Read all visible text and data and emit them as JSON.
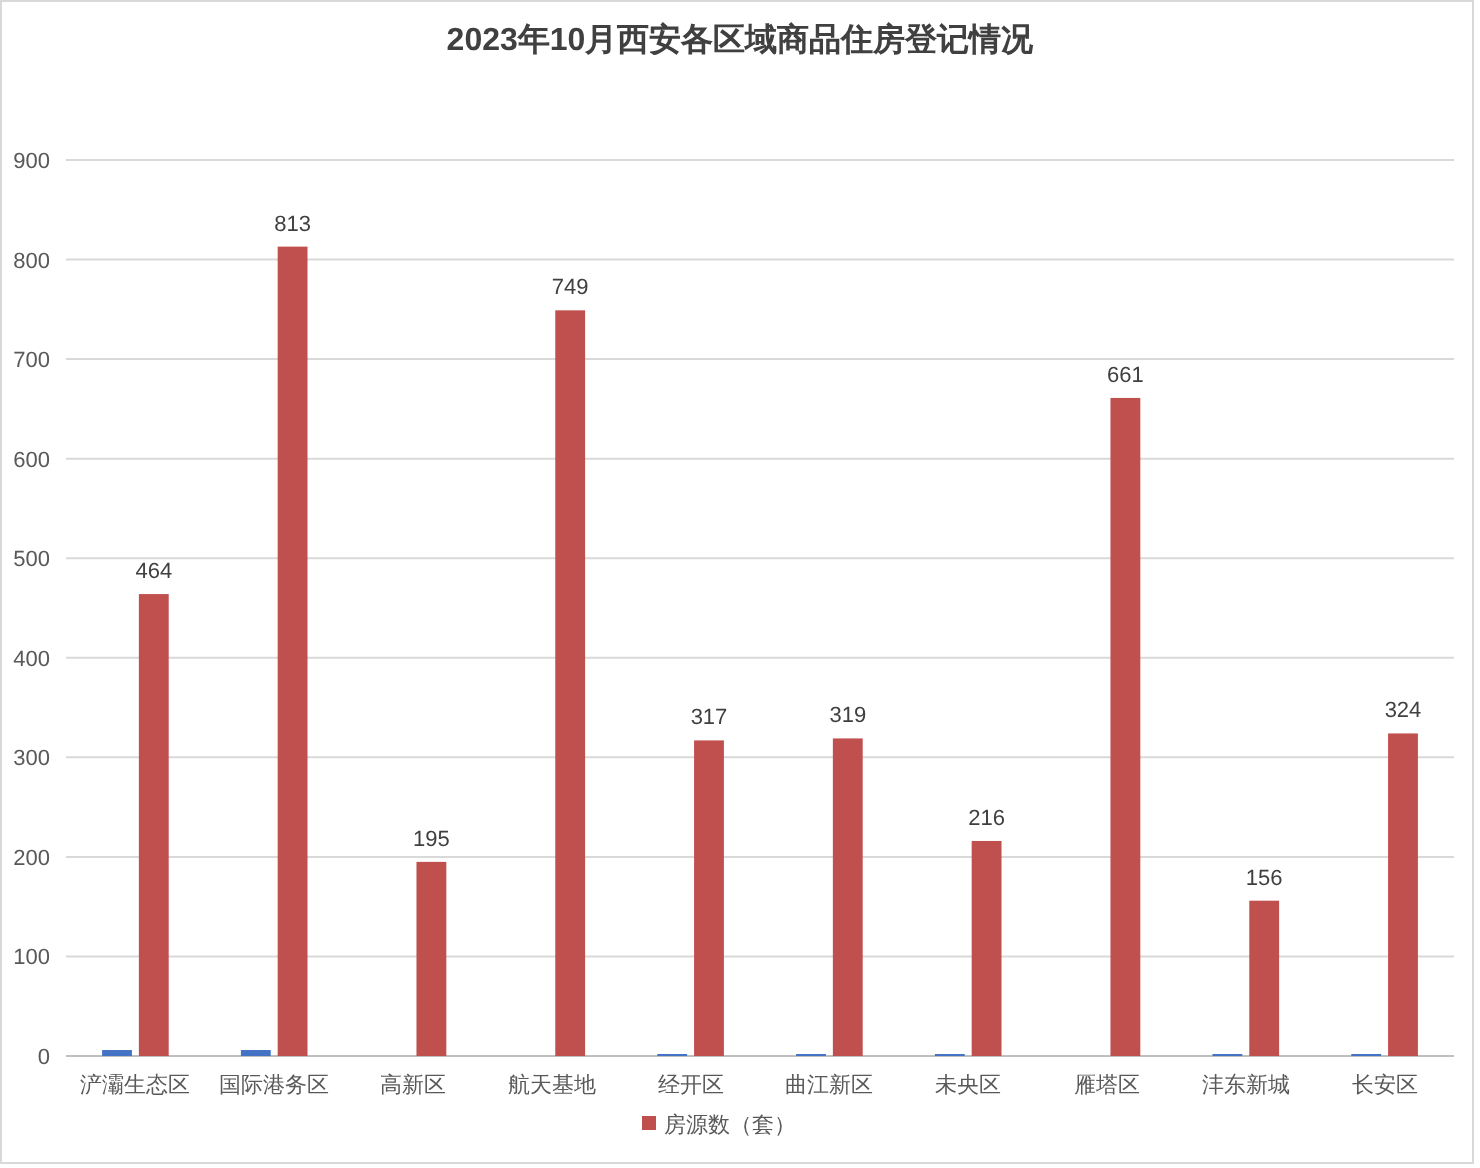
{
  "chart_data": {
    "type": "bar",
    "title": "2023年10月西安各区域商品住房登记情况",
    "categories": [
      "浐灞生态区",
      "国际港务区",
      "高新区",
      "航天基地",
      "经开区",
      "曲江新区",
      "未央区",
      "雁塔区",
      "沣东新城",
      "长安区"
    ],
    "series": [
      {
        "color": "#4472c4",
        "values": [
          6,
          6,
          0,
          0,
          2,
          2,
          2,
          0,
          2,
          2
        ]
      },
      {
        "name": "房源数（套）",
        "color": "#c0504d",
        "values": [
          464,
          813,
          195,
          749,
          317,
          319,
          216,
          661,
          156,
          324
        ],
        "value_labels": [
          "464",
          "813",
          "195",
          "749",
          "317",
          "319",
          "216",
          "661",
          "156",
          "324"
        ]
      }
    ],
    "ylim": [
      0,
      900
    ],
    "yticks": [
      0,
      100,
      200,
      300,
      400,
      500,
      600,
      700,
      800,
      900
    ],
    "grid": "y",
    "legend": "bottom"
  }
}
